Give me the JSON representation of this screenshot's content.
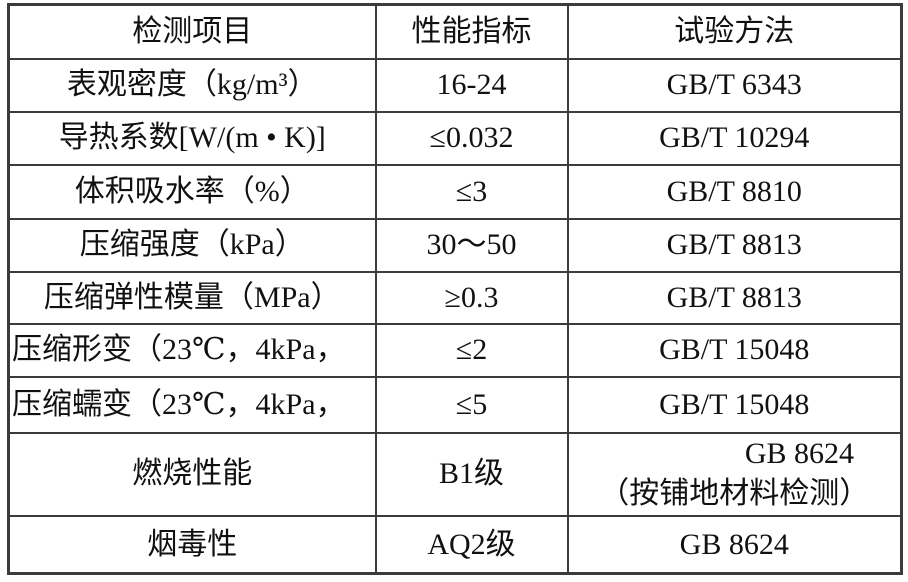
{
  "table": {
    "headers": {
      "item": "检测项目",
      "value": "性能指标",
      "method": "试验方法"
    },
    "rows": [
      {
        "item": "表观密度（kg/m³）",
        "value": "16-24",
        "method": "GB/T 6343"
      },
      {
        "item": "导热系数[W/(m • K)]",
        "value": "≤0.032",
        "method": "GB/T 10294"
      },
      {
        "item": "体积吸水率（%）",
        "value": "≤3",
        "method": "GB/T 8810"
      },
      {
        "item": "压缩强度（kPa）",
        "value": "30～50",
        "method": "GB/T 8813"
      },
      {
        "item": "压缩弹性模量（MPa）",
        "value": "≥0.3",
        "method": "GB/T 8813"
      },
      {
        "item": "压缩形变（23℃，4kPa，",
        "value": "≤2",
        "method": "GB/T 15048"
      },
      {
        "item": "压缩蠕变（23℃，4kPa，",
        "value": "≤5",
        "method": "GB/T 15048"
      },
      {
        "item": "燃烧性能",
        "value": "B1级",
        "method_line1": "GB 8624",
        "method_line2": "（按铺地材料检测）"
      },
      {
        "item": "烟毒性",
        "value": "AQ2级",
        "method": "GB 8624"
      }
    ]
  },
  "colors": {
    "border": "#3b3b3b",
    "text": "#111111",
    "background": "#ffffff"
  }
}
